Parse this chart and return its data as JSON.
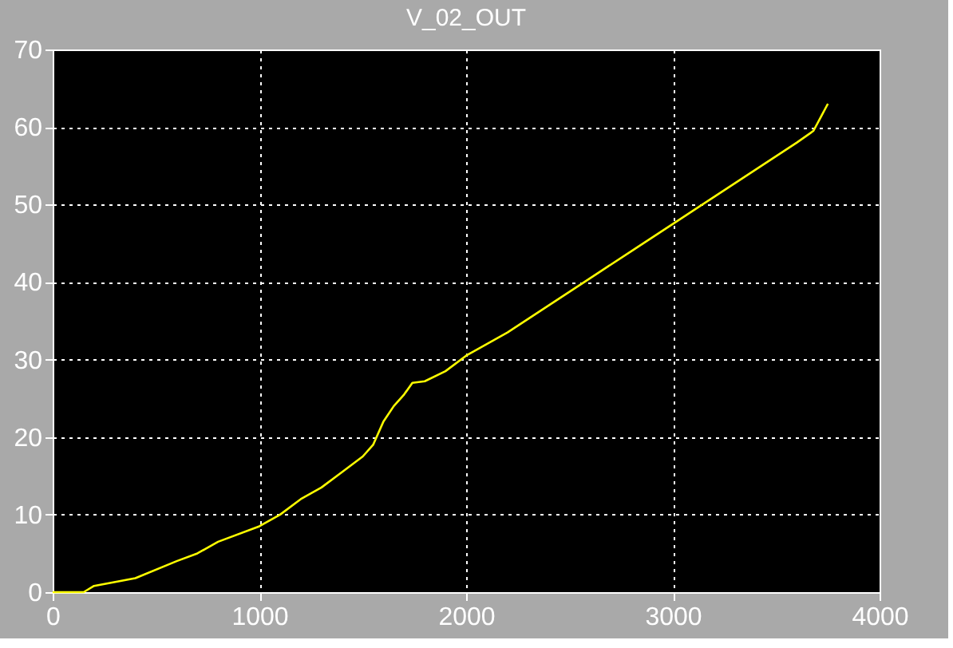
{
  "chart_data": {
    "type": "line",
    "title": "V_02_OUT",
    "x": [
      0,
      150,
      200,
      400,
      600,
      700,
      800,
      1000,
      1100,
      1200,
      1300,
      1400,
      1500,
      1550,
      1600,
      1650,
      1700,
      1740,
      1800,
      1900,
      2000,
      2200,
      2400,
      2600,
      2800,
      3000,
      3200,
      3400,
      3600,
      3680,
      3720,
      3750
    ],
    "series": [
      {
        "color": "#ffff00",
        "values": [
          0,
          0,
          0.8,
          1.8,
          4,
          5,
          6.5,
          8.5,
          10,
          12,
          13.5,
          15.5,
          17.5,
          19,
          22,
          24,
          25.5,
          27,
          27.2,
          28.5,
          30.5,
          33.5,
          37,
          40.5,
          44,
          47.5,
          51,
          54.5,
          58,
          59.5,
          61.5,
          63
        ]
      }
    ],
    "xlim": [
      0,
      4000
    ],
    "xticks": [
      0,
      1000,
      2000,
      3000,
      4000
    ],
    "ylim": [
      0,
      70
    ],
    "yticks": [
      0,
      10,
      20,
      30,
      40,
      50,
      60,
      70
    ],
    "grid": true,
    "line_style": "solid",
    "marker": "none"
  }
}
